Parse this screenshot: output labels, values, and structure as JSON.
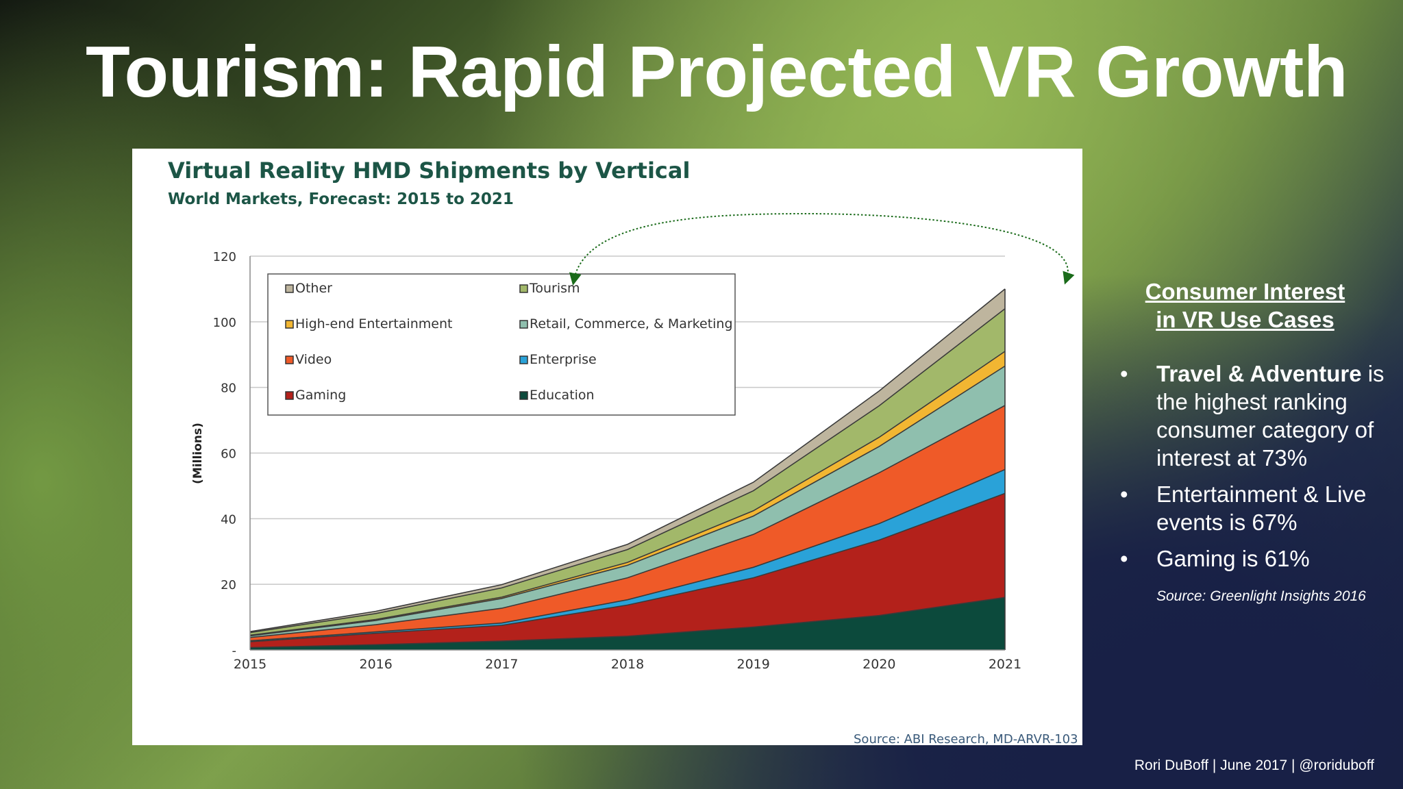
{
  "slide": {
    "title": "Tourism: Rapid Projected VR Growth",
    "footer": "Rori DuBoff  |  June 2017  | @roriduboff"
  },
  "right_panel": {
    "heading_line1": "Consumer Interest",
    "heading_line2": "in VR Use Cases",
    "bullets": [
      {
        "bold": "Travel & Adventure",
        "rest": " is the highest ranking consumer category of interest at 73%"
      },
      {
        "bold": "",
        "rest": "Entertainment & Live events is 67%"
      },
      {
        "bold": "",
        "rest": "Gaming is 61%"
      }
    ],
    "source": "Source: Greenlight Insights 2016"
  },
  "chart_data": {
    "type": "area",
    "stacked": true,
    "title": "Virtual Reality HMD Shipments by Vertical",
    "subtitle": "World Markets, Forecast: 2015 to 2021",
    "ylabel": "(Millions)",
    "xlabel": "",
    "source": "Source: ABI Research, MD-ARVR-103",
    "x": [
      2015,
      2016,
      2017,
      2018,
      2019,
      2020,
      2021
    ],
    "ylim": [
      0,
      120
    ],
    "yticks": [
      {
        "value": 0,
        "label": "-"
      },
      {
        "value": 20,
        "label": "20"
      },
      {
        "value": 40,
        "label": "40"
      },
      {
        "value": 60,
        "label": "60"
      },
      {
        "value": 80,
        "label": "80"
      },
      {
        "value": 100,
        "label": "100"
      },
      {
        "value": 120,
        "label": "120"
      }
    ],
    "grid": true,
    "legend_position": "top-left",
    "series": [
      {
        "name": "Education",
        "color": "#0c4a3c",
        "values": [
          0.7,
          1.6,
          2.7,
          4.2,
          7.0,
          10.5,
          16.0
        ]
      },
      {
        "name": "Gaming",
        "color": "#b3211b",
        "values": [
          1.8,
          3.5,
          4.8,
          9.5,
          15.0,
          23.0,
          31.7
        ]
      },
      {
        "name": "Enterprise",
        "color": "#2aa2d8",
        "values": [
          0.3,
          0.4,
          0.7,
          1.6,
          3.2,
          5.0,
          7.3
        ]
      },
      {
        "name": "Video",
        "color": "#ef5a28",
        "values": [
          1.0,
          2.2,
          4.5,
          6.7,
          10.0,
          15.5,
          19.5
        ]
      },
      {
        "name": "Retail, Commerce, & Marketing",
        "color": "#8fbfae",
        "values": [
          0.5,
          1.3,
          3.0,
          3.8,
          5.6,
          8.0,
          12.0
        ]
      },
      {
        "name": "High-end Entertainment",
        "color": "#f2b632",
        "values": [
          0.2,
          0.3,
          0.4,
          0.9,
          1.6,
          2.8,
          4.5
        ]
      },
      {
        "name": "Tourism",
        "color": "#a2b86a",
        "values": [
          0.8,
          1.8,
          2.8,
          3.9,
          6.1,
          9.6,
          13.0
        ]
      },
      {
        "name": "Other",
        "color": "#beb59e",
        "values": [
          0.3,
          0.7,
          1.0,
          1.6,
          2.6,
          4.5,
          6.0
        ]
      }
    ],
    "legend_order": [
      "Other",
      "Tourism",
      "High-end Entertainment",
      "Retail, Commerce, & Marketing",
      "Video",
      "Enterprise",
      "Gaming",
      "Education"
    ]
  }
}
